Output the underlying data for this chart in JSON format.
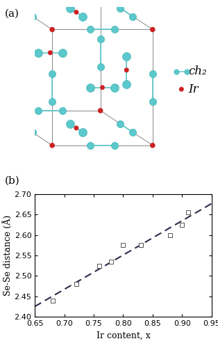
{
  "panel_b": {
    "x_data": [
      0.68,
      0.72,
      0.76,
      0.78,
      0.8,
      0.83,
      0.88,
      0.9,
      0.91
    ],
    "y_data": [
      2.44,
      2.48,
      2.525,
      2.535,
      2.575,
      2.575,
      2.6,
      2.625,
      2.655
    ],
    "xlabel": "Ir content, x",
    "ylabel": "Se-Se distance (Å)",
    "xlim": [
      0.65,
      0.95
    ],
    "ylim": [
      2.4,
      2.7
    ],
    "xticks": [
      0.65,
      0.7,
      0.75,
      0.8,
      0.85,
      0.9,
      0.95
    ],
    "yticks": [
      2.4,
      2.45,
      2.5,
      2.55,
      2.6,
      2.65,
      2.7
    ],
    "marker": "s",
    "marker_color": "white",
    "marker_edgecolor": "#555555",
    "marker_size": 4,
    "line_color": "#2b2b4b",
    "line_style": "--",
    "line_width": 1.5
  },
  "ch2_color": "#5BC8CC",
  "ir_color": "#CC2222",
  "bond_color": "#5BC8CC",
  "cube_color": "#888888",
  "label_a": "(a)",
  "label_b": "(b)",
  "label_fontsize": 11,
  "axis_fontsize": 9,
  "tick_fontsize": 8,
  "ch2_label": "ch₂",
  "ir_label": "Ir"
}
